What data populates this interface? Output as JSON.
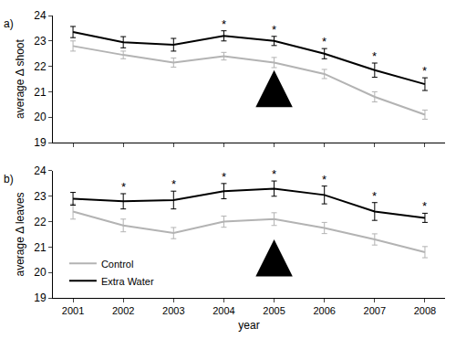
{
  "chart_data": [
    {
      "type": "line",
      "title": "a)",
      "y_label": "average Δ shoot",
      "x": [
        2001,
        2002,
        2003,
        2004,
        2005,
        2006,
        2007,
        2008
      ],
      "xlim": [
        2000.6,
        2008.4
      ],
      "xticks": [
        2001,
        2002,
        2003,
        2004,
        2005,
        2006,
        2007,
        2008
      ],
      "ylim": [
        19,
        24
      ],
      "yticks": [
        19,
        20,
        21,
        22,
        23,
        24
      ],
      "tick_labels": "y",
      "grid": false,
      "series": [
        {
          "name": "Control",
          "color": "#b3b3b3",
          "values": [
            22.8,
            22.45,
            22.15,
            22.4,
            22.15,
            21.7,
            20.8,
            20.1
          ],
          "errors": [
            0.2,
            0.15,
            0.18,
            0.15,
            0.2,
            0.18,
            0.2,
            0.18
          ]
        },
        {
          "name": "Extra Water",
          "color": "#000000",
          "values": [
            23.35,
            22.95,
            22.85,
            23.2,
            23.0,
            22.5,
            21.85,
            21.3
          ],
          "errors": [
            0.22,
            0.22,
            0.25,
            0.2,
            0.18,
            0.2,
            0.28,
            0.25
          ]
        }
      ],
      "annotations": [
        {
          "x": 2004,
          "text": "*"
        },
        {
          "x": 2005,
          "text": "*"
        },
        {
          "x": 2006,
          "text": "*"
        },
        {
          "x": 2007,
          "text": "*"
        },
        {
          "x": 2008,
          "text": "*"
        }
      ],
      "arrow": {
        "x": 2005,
        "y": 21.85
      }
    },
    {
      "type": "line",
      "title": "b)",
      "x_label": "year",
      "y_label": "average Δ leaves",
      "x": [
        2001,
        2002,
        2003,
        2004,
        2005,
        2006,
        2007,
        2008
      ],
      "xlim": [
        2000.6,
        2008.4
      ],
      "xticks": [
        2001,
        2002,
        2003,
        2004,
        2005,
        2006,
        2007,
        2008
      ],
      "ylim": [
        19,
        24
      ],
      "yticks": [
        19,
        20,
        21,
        22,
        23,
        24
      ],
      "grid": false,
      "legend": "lower left",
      "series": [
        {
          "name": "Control",
          "color": "#b3b3b3",
          "values": [
            22.4,
            21.85,
            21.55,
            22.0,
            22.1,
            21.75,
            21.3,
            20.8
          ],
          "errors": [
            0.3,
            0.25,
            0.22,
            0.22,
            0.25,
            0.22,
            0.22,
            0.22
          ]
        },
        {
          "name": "Extra Water",
          "color": "#000000",
          "values": [
            22.9,
            22.8,
            22.85,
            23.2,
            23.3,
            23.05,
            22.4,
            22.15
          ],
          "errors": [
            0.25,
            0.3,
            0.35,
            0.3,
            0.3,
            0.35,
            0.35,
            0.18
          ]
        }
      ],
      "annotations": [
        {
          "x": 2002,
          "text": "*"
        },
        {
          "x": 2003,
          "text": "*"
        },
        {
          "x": 2004,
          "text": "*"
        },
        {
          "x": 2005,
          "text": "*"
        },
        {
          "x": 2006,
          "text": "*"
        },
        {
          "x": 2007,
          "text": "*"
        },
        {
          "x": 2008,
          "text": "*"
        }
      ],
      "arrow": {
        "x": 2005,
        "y": 21.3
      }
    }
  ]
}
